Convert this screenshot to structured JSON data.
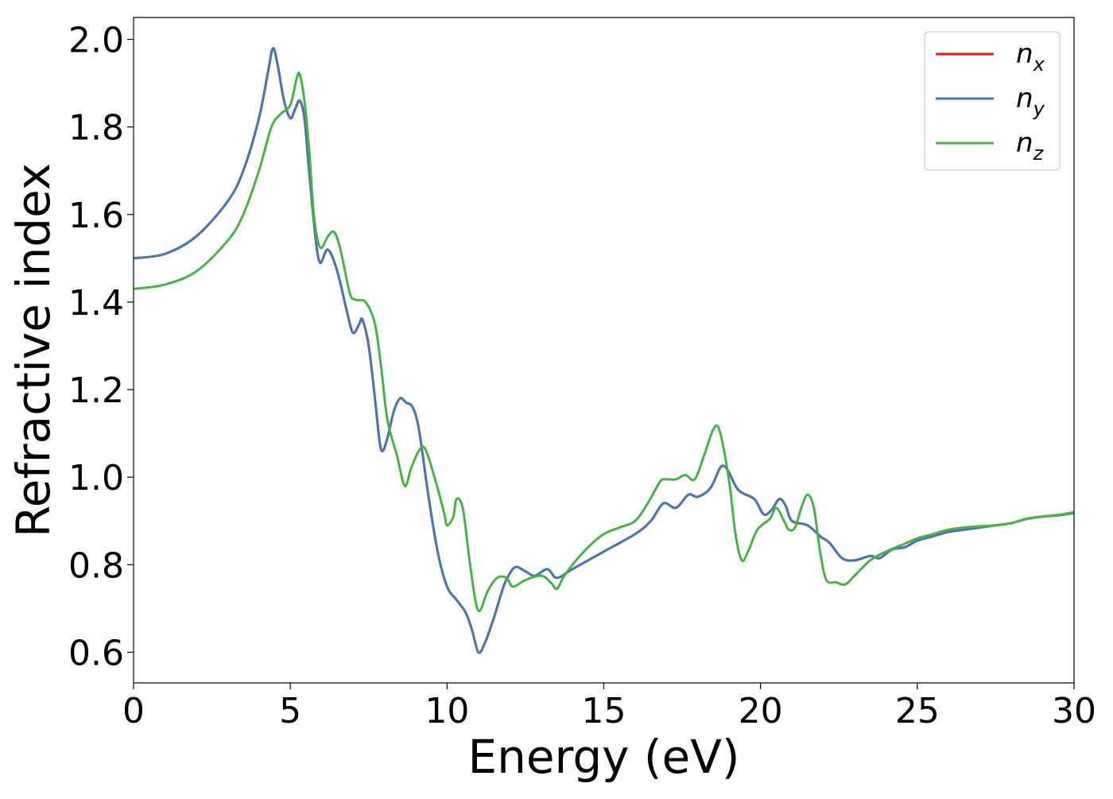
{
  "chart_data": {
    "type": "line",
    "title": "",
    "xlabel": "Energy (eV)",
    "ylabel": "Refractive index",
    "xlim": [
      0,
      30
    ],
    "ylim": [
      0.53,
      2.05
    ],
    "xticks": [
      0,
      5,
      10,
      15,
      20,
      25,
      30
    ],
    "xtick_labels": [
      "0",
      "5",
      "10",
      "15",
      "20",
      "25",
      "30"
    ],
    "yticks": [
      0.6,
      0.8,
      1.0,
      1.2,
      1.4,
      1.6,
      1.8,
      2.0
    ],
    "ytick_labels": [
      "0.6",
      "0.8",
      "1.0",
      "1.2",
      "1.4",
      "1.6",
      "1.8",
      "2.0"
    ],
    "grid": false,
    "legend_position": "top-right",
    "series": [
      {
        "name": "n",
        "subscript": "x",
        "color": "#e41a1c",
        "points": [
          [
            0,
            1.5
          ],
          [
            1,
            1.51
          ],
          [
            2,
            1.55
          ],
          [
            3,
            1.63
          ],
          [
            3.5,
            1.7
          ],
          [
            4,
            1.82
          ],
          [
            4.3,
            1.93
          ],
          [
            4.45,
            1.98
          ],
          [
            4.6,
            1.94
          ],
          [
            4.8,
            1.86
          ],
          [
            5.0,
            1.82
          ],
          [
            5.15,
            1.84
          ],
          [
            5.3,
            1.86
          ],
          [
            5.45,
            1.82
          ],
          [
            5.6,
            1.7
          ],
          [
            5.8,
            1.55
          ],
          [
            5.95,
            1.49
          ],
          [
            6.2,
            1.52
          ],
          [
            6.5,
            1.47
          ],
          [
            6.8,
            1.38
          ],
          [
            7.0,
            1.33
          ],
          [
            7.2,
            1.35
          ],
          [
            7.3,
            1.36
          ],
          [
            7.5,
            1.3
          ],
          [
            7.7,
            1.18
          ],
          [
            7.85,
            1.08
          ],
          [
            7.95,
            1.06
          ],
          [
            8.1,
            1.09
          ],
          [
            8.3,
            1.15
          ],
          [
            8.5,
            1.18
          ],
          [
            8.7,
            1.17
          ],
          [
            8.9,
            1.16
          ],
          [
            9.1,
            1.11
          ],
          [
            9.4,
            0.96
          ],
          [
            9.7,
            0.83
          ],
          [
            10.0,
            0.75
          ],
          [
            10.3,
            0.72
          ],
          [
            10.6,
            0.69
          ],
          [
            10.8,
            0.65
          ],
          [
            11.0,
            0.6
          ],
          [
            11.2,
            0.62
          ],
          [
            11.5,
            0.68
          ],
          [
            11.8,
            0.75
          ],
          [
            12.0,
            0.78
          ],
          [
            12.2,
            0.795
          ],
          [
            12.5,
            0.785
          ],
          [
            12.8,
            0.775
          ],
          [
            13.2,
            0.79
          ],
          [
            13.5,
            0.77
          ],
          [
            14.0,
            0.79
          ],
          [
            15.0,
            0.83
          ],
          [
            16.0,
            0.87
          ],
          [
            16.5,
            0.9
          ],
          [
            16.9,
            0.94
          ],
          [
            17.3,
            0.93
          ],
          [
            17.7,
            0.96
          ],
          [
            18.0,
            0.955
          ],
          [
            18.4,
            0.975
          ],
          [
            18.7,
            1.02
          ],
          [
            18.85,
            1.025
          ],
          [
            19.0,
            1.01
          ],
          [
            19.3,
            0.97
          ],
          [
            19.8,
            0.95
          ],
          [
            20.1,
            0.915
          ],
          [
            20.35,
            0.925
          ],
          [
            20.6,
            0.95
          ],
          [
            20.8,
            0.935
          ],
          [
            21.0,
            0.9
          ],
          [
            21.5,
            0.89
          ],
          [
            21.9,
            0.865
          ],
          [
            22.2,
            0.85
          ],
          [
            22.6,
            0.815
          ],
          [
            23.0,
            0.81
          ],
          [
            23.5,
            0.82
          ],
          [
            23.8,
            0.815
          ],
          [
            24.2,
            0.835
          ],
          [
            24.6,
            0.84
          ],
          [
            25.0,
            0.855
          ],
          [
            25.5,
            0.865
          ],
          [
            26.0,
            0.875
          ],
          [
            26.5,
            0.88
          ],
          [
            27.0,
            0.885
          ],
          [
            27.5,
            0.89
          ],
          [
            28.0,
            0.895
          ],
          [
            28.5,
            0.905
          ],
          [
            29.0,
            0.91
          ],
          [
            29.5,
            0.913
          ],
          [
            30.0,
            0.918
          ]
        ]
      },
      {
        "name": "n",
        "subscript": "y",
        "color": "#4a77ad",
        "points": [
          [
            0,
            1.5
          ],
          [
            1,
            1.51
          ],
          [
            2,
            1.55
          ],
          [
            3,
            1.63
          ],
          [
            3.5,
            1.7
          ],
          [
            4,
            1.82
          ],
          [
            4.3,
            1.93
          ],
          [
            4.45,
            1.98
          ],
          [
            4.6,
            1.94
          ],
          [
            4.8,
            1.86
          ],
          [
            5.0,
            1.82
          ],
          [
            5.15,
            1.84
          ],
          [
            5.3,
            1.86
          ],
          [
            5.45,
            1.82
          ],
          [
            5.6,
            1.7
          ],
          [
            5.8,
            1.55
          ],
          [
            5.95,
            1.49
          ],
          [
            6.2,
            1.52
          ],
          [
            6.5,
            1.47
          ],
          [
            6.8,
            1.38
          ],
          [
            7.0,
            1.33
          ],
          [
            7.2,
            1.35
          ],
          [
            7.3,
            1.36
          ],
          [
            7.5,
            1.3
          ],
          [
            7.7,
            1.18
          ],
          [
            7.85,
            1.08
          ],
          [
            7.95,
            1.06
          ],
          [
            8.1,
            1.09
          ],
          [
            8.3,
            1.15
          ],
          [
            8.5,
            1.18
          ],
          [
            8.7,
            1.17
          ],
          [
            8.9,
            1.16
          ],
          [
            9.1,
            1.11
          ],
          [
            9.4,
            0.96
          ],
          [
            9.7,
            0.83
          ],
          [
            10.0,
            0.75
          ],
          [
            10.3,
            0.72
          ],
          [
            10.6,
            0.69
          ],
          [
            10.8,
            0.65
          ],
          [
            11.0,
            0.6
          ],
          [
            11.2,
            0.62
          ],
          [
            11.5,
            0.68
          ],
          [
            11.8,
            0.75
          ],
          [
            12.0,
            0.78
          ],
          [
            12.2,
            0.795
          ],
          [
            12.5,
            0.785
          ],
          [
            12.8,
            0.775
          ],
          [
            13.2,
            0.79
          ],
          [
            13.5,
            0.77
          ],
          [
            14.0,
            0.79
          ],
          [
            15.0,
            0.83
          ],
          [
            16.0,
            0.87
          ],
          [
            16.5,
            0.9
          ],
          [
            16.9,
            0.94
          ],
          [
            17.3,
            0.93
          ],
          [
            17.7,
            0.96
          ],
          [
            18.0,
            0.955
          ],
          [
            18.4,
            0.975
          ],
          [
            18.7,
            1.02
          ],
          [
            18.85,
            1.025
          ],
          [
            19.0,
            1.01
          ],
          [
            19.3,
            0.97
          ],
          [
            19.8,
            0.95
          ],
          [
            20.1,
            0.915
          ],
          [
            20.35,
            0.925
          ],
          [
            20.6,
            0.95
          ],
          [
            20.8,
            0.935
          ],
          [
            21.0,
            0.9
          ],
          [
            21.5,
            0.89
          ],
          [
            21.9,
            0.865
          ],
          [
            22.2,
            0.85
          ],
          [
            22.6,
            0.815
          ],
          [
            23.0,
            0.81
          ],
          [
            23.5,
            0.82
          ],
          [
            23.8,
            0.815
          ],
          [
            24.2,
            0.835
          ],
          [
            24.6,
            0.84
          ],
          [
            25.0,
            0.855
          ],
          [
            25.5,
            0.865
          ],
          [
            26.0,
            0.875
          ],
          [
            26.5,
            0.88
          ],
          [
            27.0,
            0.885
          ],
          [
            27.5,
            0.89
          ],
          [
            28.0,
            0.895
          ],
          [
            28.5,
            0.905
          ],
          [
            29.0,
            0.91
          ],
          [
            29.5,
            0.913
          ],
          [
            30.0,
            0.918
          ]
        ]
      },
      {
        "name": "n",
        "subscript": "z",
        "color": "#4daf4a",
        "points": [
          [
            0,
            1.43
          ],
          [
            1,
            1.44
          ],
          [
            2,
            1.47
          ],
          [
            3,
            1.54
          ],
          [
            3.5,
            1.6
          ],
          [
            4,
            1.7
          ],
          [
            4.4,
            1.8
          ],
          [
            4.7,
            1.83
          ],
          [
            5.0,
            1.85
          ],
          [
            5.2,
            1.91
          ],
          [
            5.3,
            1.92
          ],
          [
            5.45,
            1.86
          ],
          [
            5.6,
            1.75
          ],
          [
            5.75,
            1.6
          ],
          [
            5.95,
            1.525
          ],
          [
            6.2,
            1.55
          ],
          [
            6.4,
            1.56
          ],
          [
            6.6,
            1.52
          ],
          [
            6.9,
            1.42
          ],
          [
            7.1,
            1.405
          ],
          [
            7.4,
            1.4
          ],
          [
            7.7,
            1.35
          ],
          [
            7.9,
            1.25
          ],
          [
            8.1,
            1.13
          ],
          [
            8.4,
            1.05
          ],
          [
            8.65,
            0.98
          ],
          [
            8.85,
            1.02
          ],
          [
            9.1,
            1.06
          ],
          [
            9.3,
            1.065
          ],
          [
            9.6,
            1.0
          ],
          [
            9.9,
            0.92
          ],
          [
            10.0,
            0.89
          ],
          [
            10.2,
            0.91
          ],
          [
            10.3,
            0.95
          ],
          [
            10.5,
            0.93
          ],
          [
            10.7,
            0.82
          ],
          [
            10.9,
            0.72
          ],
          [
            11.05,
            0.695
          ],
          [
            11.3,
            0.74
          ],
          [
            11.6,
            0.77
          ],
          [
            11.9,
            0.77
          ],
          [
            12.1,
            0.75
          ],
          [
            12.5,
            0.765
          ],
          [
            13.0,
            0.775
          ],
          [
            13.3,
            0.76
          ],
          [
            13.5,
            0.745
          ],
          [
            13.7,
            0.77
          ],
          [
            14.0,
            0.8
          ],
          [
            14.5,
            0.84
          ],
          [
            15.0,
            0.87
          ],
          [
            15.5,
            0.885
          ],
          [
            16.0,
            0.9
          ],
          [
            16.4,
            0.94
          ],
          [
            16.8,
            0.99
          ],
          [
            17.0,
            0.995
          ],
          [
            17.3,
            0.995
          ],
          [
            17.6,
            1.005
          ],
          [
            17.9,
            0.995
          ],
          [
            18.2,
            1.05
          ],
          [
            18.5,
            1.11
          ],
          [
            18.7,
            1.105
          ],
          [
            19.0,
            0.99
          ],
          [
            19.2,
            0.87
          ],
          [
            19.4,
            0.81
          ],
          [
            19.6,
            0.83
          ],
          [
            19.9,
            0.88
          ],
          [
            20.3,
            0.905
          ],
          [
            20.5,
            0.93
          ],
          [
            20.75,
            0.9
          ],
          [
            20.9,
            0.88
          ],
          [
            21.1,
            0.885
          ],
          [
            21.3,
            0.93
          ],
          [
            21.5,
            0.96
          ],
          [
            21.7,
            0.93
          ],
          [
            21.9,
            0.83
          ],
          [
            22.1,
            0.765
          ],
          [
            22.4,
            0.76
          ],
          [
            22.7,
            0.755
          ],
          [
            23.0,
            0.775
          ],
          [
            23.5,
            0.81
          ],
          [
            24.0,
            0.83
          ],
          [
            24.5,
            0.845
          ],
          [
            25.0,
            0.86
          ],
          [
            25.5,
            0.87
          ],
          [
            26.0,
            0.88
          ],
          [
            26.5,
            0.885
          ],
          [
            27.0,
            0.888
          ],
          [
            27.5,
            0.89
          ],
          [
            28.0,
            0.895
          ],
          [
            28.5,
            0.905
          ],
          [
            29.0,
            0.91
          ],
          [
            29.5,
            0.914
          ],
          [
            30.0,
            0.92
          ]
        ]
      }
    ]
  }
}
